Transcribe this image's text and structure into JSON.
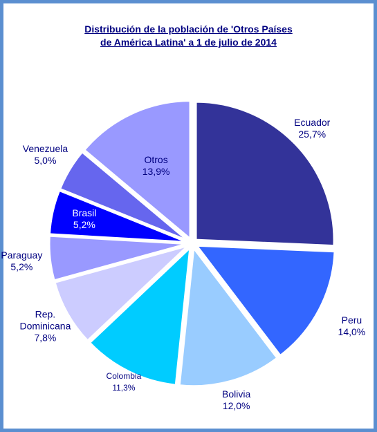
{
  "chart_data": {
    "type": "pie",
    "title": [
      "Distribución de la población de 'Otros Países",
      "de América Latina' a 1 de julio de 2014"
    ],
    "categories": [
      "Ecuador",
      "Peru",
      "Bolivia",
      "Colombia",
      "Rep. Dominicana",
      "Paraguay",
      "Brasil",
      "Venezuela",
      "Otros"
    ],
    "values": [
      25.7,
      14.0,
      12.0,
      11.3,
      7.8,
      5.2,
      5.2,
      5.0,
      13.9
    ],
    "value_labels": [
      "25,7%",
      "14,0%",
      "12,0%",
      "11,3%",
      "7,8%",
      "5,2%",
      "5,2%",
      "5,0%",
      "13,9%"
    ],
    "colors": [
      "#333399",
      "#3366ff",
      "#99ccff",
      "#00ccff",
      "#ccccff",
      "#9999ff",
      "#0000ff",
      "#6666ee",
      "#9999ff"
    ]
  }
}
